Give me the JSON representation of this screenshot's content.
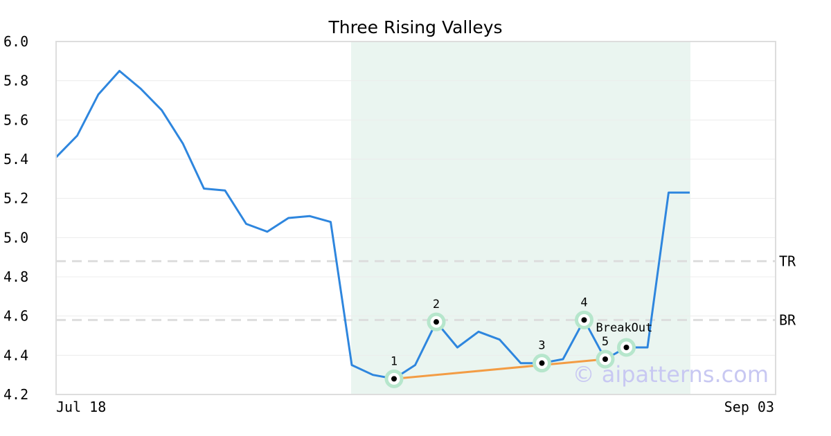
{
  "chart_data": {
    "type": "line",
    "title": "Three Rising Valleys",
    "xlabel": "",
    "ylabel": "",
    "ylim": [
      4.2,
      6.0
    ],
    "yticks": [
      "6.0",
      "5.8",
      "5.6",
      "5.4",
      "5.2",
      "5.0",
      "4.8",
      "4.6",
      "4.4",
      "4.2"
    ],
    "xtick_labels": [
      "Jul 18",
      "Sep 03"
    ],
    "grid": true,
    "series": [
      {
        "values": [
          5.41,
          5.52,
          5.73,
          5.85,
          5.76,
          5.65,
          5.48,
          5.25,
          5.24,
          5.07,
          5.03,
          5.1,
          5.11,
          5.08,
          4.35,
          4.3,
          4.28,
          4.35,
          4.57,
          4.44,
          4.52,
          4.48,
          4.36,
          4.36,
          4.38,
          4.58,
          4.38,
          4.44,
          4.44,
          5.23,
          5.23
        ],
        "color": "#2e86de"
      }
    ],
    "highlight_range": {
      "start_index": 14,
      "end_index": 30,
      "color": "#eaf5f0"
    },
    "levels": [
      {
        "label": "TR",
        "value": 4.88
      },
      {
        "label": "BR",
        "value": 4.58
      }
    ],
    "pattern_points": [
      {
        "label": "1",
        "index": 16,
        "value": 4.28
      },
      {
        "label": "2",
        "index": 18,
        "value": 4.57
      },
      {
        "label": "3",
        "index": 23,
        "value": 4.36
      },
      {
        "label": "4",
        "index": 25,
        "value": 4.58
      },
      {
        "label": "5",
        "index": 26,
        "value": 4.38
      },
      {
        "label": "BreakOut",
        "index": 27,
        "value": 4.44
      }
    ],
    "trendline": {
      "from_index": 16,
      "from_value": 4.28,
      "to_index": 26,
      "to_value": 4.38,
      "color": "#f39c44"
    },
    "watermark": "© aipatterns.com"
  }
}
